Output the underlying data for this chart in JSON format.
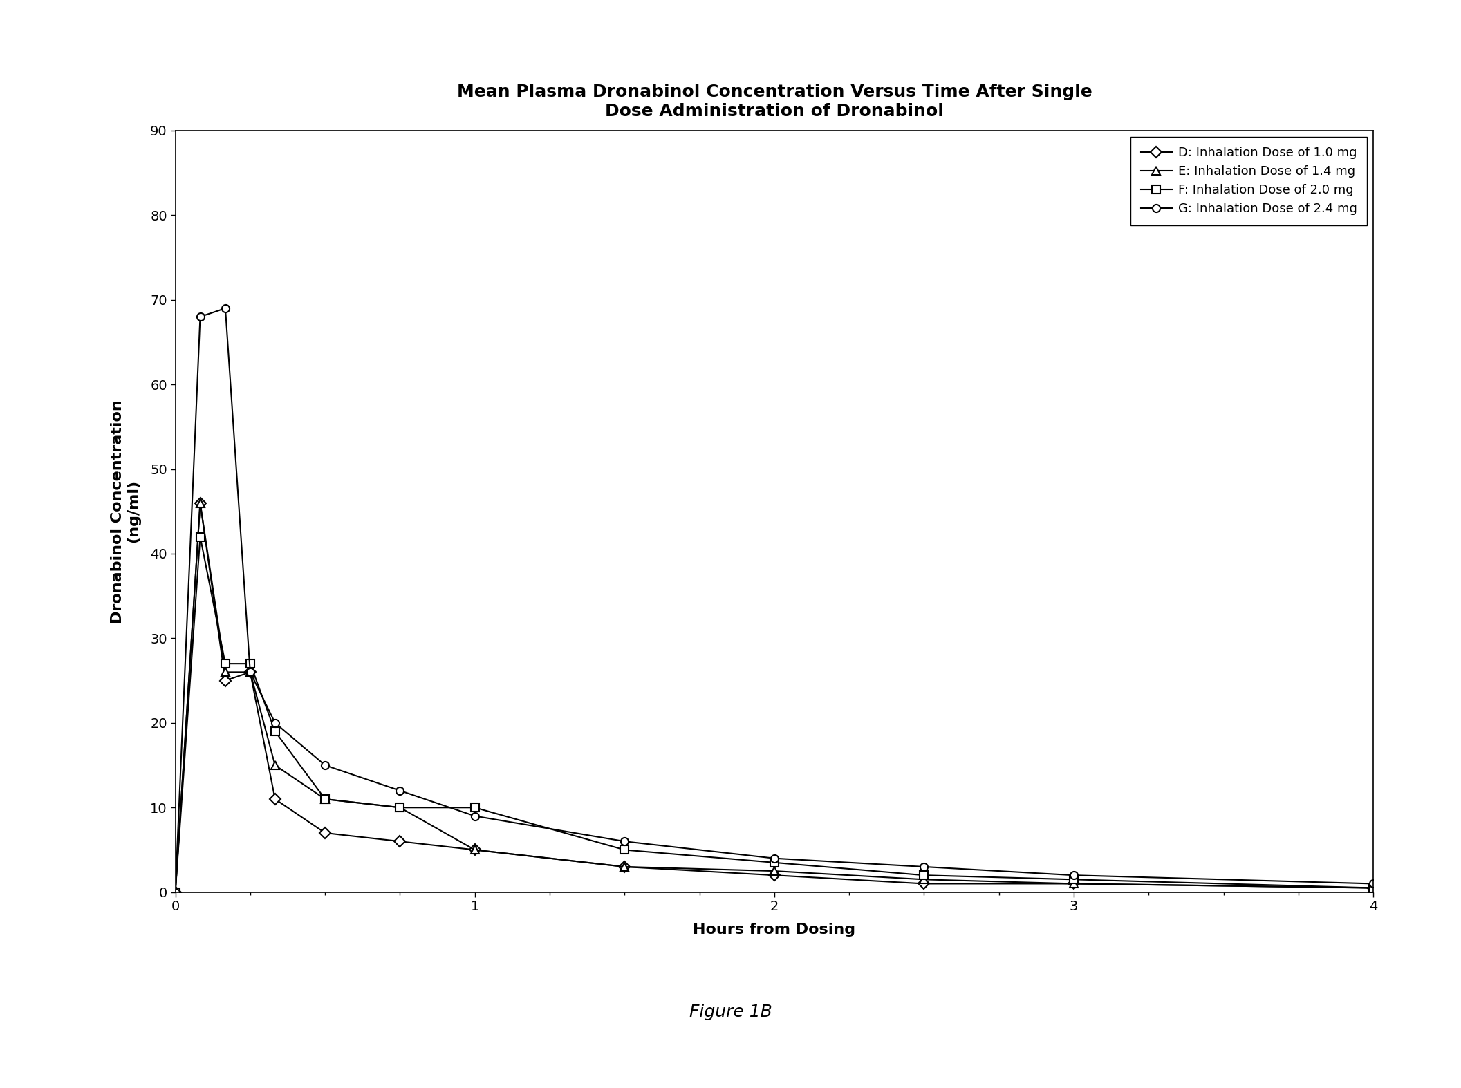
{
  "title": "Mean Plasma Dronabinol Concentration Versus Time After Single\nDose Administration of Dronabinol",
  "xlabel": "Hours from Dosing",
  "ylabel": "Dronabinol Concentration\n(ng/ml)",
  "figure_caption": "Figure 1B",
  "xlim": [
    0,
    4
  ],
  "ylim": [
    0,
    90
  ],
  "yticks": [
    0,
    10,
    20,
    30,
    40,
    50,
    60,
    70,
    80,
    90
  ],
  "xticks": [
    0,
    1,
    2,
    3,
    4
  ],
  "series": [
    {
      "label": "D: Inhalation Dose of 1.0 mg",
      "marker": "D",
      "color": "#000000",
      "x": [
        0,
        0.083,
        0.167,
        0.25,
        0.333,
        0.5,
        0.75,
        1.0,
        1.5,
        2.0,
        2.5,
        3.0,
        4.0
      ],
      "y": [
        0,
        46,
        25,
        26,
        11,
        7,
        6,
        5,
        3,
        2,
        1,
        1,
        0.5
      ]
    },
    {
      "label": "E: Inhalation Dose of 1.4 mg",
      "marker": "^",
      "color": "#000000",
      "x": [
        0,
        0.083,
        0.167,
        0.25,
        0.333,
        0.5,
        0.75,
        1.0,
        1.5,
        2.0,
        2.5,
        3.0,
        4.0
      ],
      "y": [
        0,
        46,
        26,
        26,
        15,
        11,
        10,
        5,
        3,
        2.5,
        1.5,
        1,
        0.5
      ]
    },
    {
      "label": "F: Inhalation Dose of 2.0 mg",
      "marker": "s",
      "color": "#000000",
      "x": [
        0,
        0.083,
        0.167,
        0.25,
        0.333,
        0.5,
        0.75,
        1.0,
        1.5,
        2.0,
        2.5,
        3.0,
        4.0
      ],
      "y": [
        0,
        42,
        27,
        27,
        19,
        11,
        10,
        10,
        5,
        3.5,
        2,
        1.5,
        0.5
      ]
    },
    {
      "label": "G: Inhalation Dose of 2.4 mg",
      "marker": "o",
      "color": "#000000",
      "x": [
        0,
        0.083,
        0.167,
        0.25,
        0.333,
        0.5,
        0.75,
        1.0,
        1.5,
        2.0,
        2.5,
        3.0,
        4.0
      ],
      "y": [
        0,
        68,
        69,
        26,
        20,
        15,
        12,
        9,
        6,
        4,
        3,
        2,
        1
      ]
    }
  ],
  "background_color": "#ffffff",
  "line_color": "#000000",
  "line_width": 1.5,
  "marker_size": 8,
  "title_fontsize": 18,
  "label_fontsize": 16,
  "tick_fontsize": 14,
  "legend_fontsize": 13,
  "caption_fontsize": 18
}
